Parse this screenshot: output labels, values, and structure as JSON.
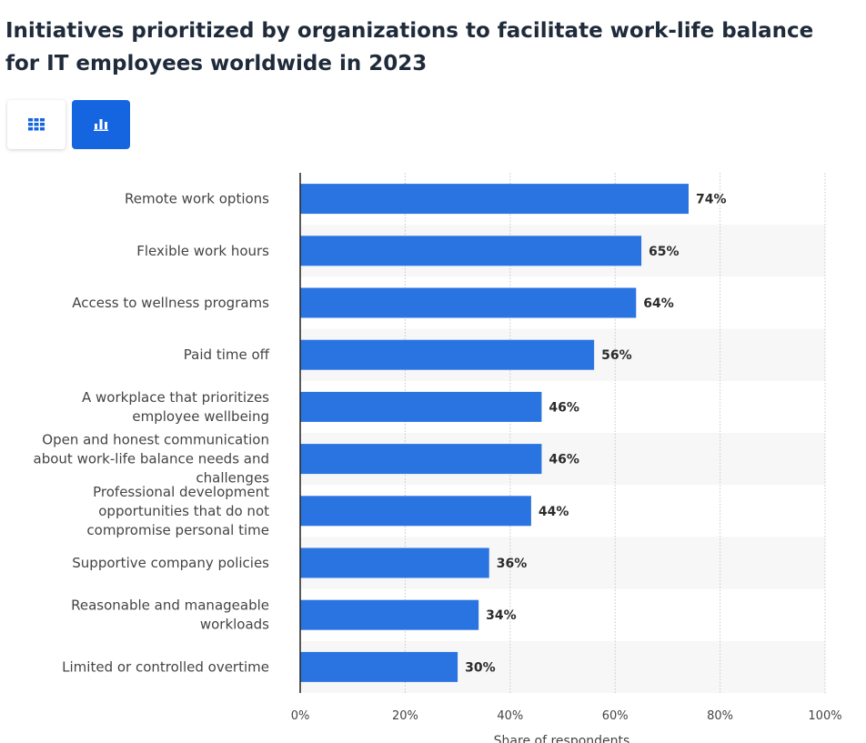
{
  "title": "Initiatives prioritized by organizations to facilitate work-life balance for IT employees worldwide in 2023",
  "view_toggle": {
    "table_icon": "grid-table-icon",
    "chart_icon": "bar-chart-icon",
    "active": "chart"
  },
  "colors": {
    "bar": "#2a74e1",
    "accent": "#1565e0",
    "band": "#f7f7f7",
    "grid": "#c8c8c8",
    "label": "#444444",
    "value": "#2b2b2b"
  },
  "chart_data": {
    "type": "bar",
    "orientation": "horizontal",
    "categories": [
      [
        "Remote work options"
      ],
      [
        "Flexible work hours"
      ],
      [
        "Access to wellness programs"
      ],
      [
        "Paid time off"
      ],
      [
        "A workplace that prioritizes",
        "employee wellbeing"
      ],
      [
        "Open and honest communication",
        "about work-life balance needs and",
        "challenges"
      ],
      [
        "Professional development",
        "opportunities that do not",
        "compromise personal time"
      ],
      [
        "Supportive company policies"
      ],
      [
        "Reasonable and manageable",
        "workloads"
      ],
      [
        "Limited or controlled overtime"
      ]
    ],
    "values": [
      74,
      65,
      64,
      56,
      46,
      46,
      44,
      36,
      34,
      30
    ],
    "value_labels": [
      "74%",
      "65%",
      "64%",
      "56%",
      "46%",
      "46%",
      "44%",
      "36%",
      "34%",
      "30%"
    ],
    "xlim": [
      0,
      100
    ],
    "xticks": [
      0,
      20,
      40,
      60,
      80,
      100
    ],
    "xtick_labels": [
      "0%",
      "20%",
      "40%",
      "60%",
      "80%",
      "100%"
    ],
    "xlabel": "Share of respondents",
    "grid": true
  }
}
